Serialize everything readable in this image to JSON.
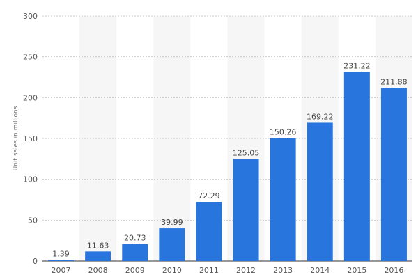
{
  "chart_data": {
    "type": "bar",
    "title": "",
    "xlabel": "",
    "ylabel": "Unit sales in millions",
    "categories": [
      "2007",
      "2008",
      "2009",
      "2010",
      "2011",
      "2012",
      "2013",
      "2014",
      "2015",
      "2016"
    ],
    "values": [
      1.39,
      11.63,
      20.73,
      39.99,
      72.29,
      125.05,
      150.26,
      169.22,
      231.22,
      211.88
    ],
    "value_labels": [
      "1.39",
      "11.63",
      "20.73",
      "39.99",
      "72.29",
      "125.05",
      "150.26",
      "169.22",
      "231.22",
      "211.88"
    ],
    "ylim": [
      0,
      300
    ],
    "yticks": [
      0,
      50,
      100,
      150,
      200,
      250,
      300
    ],
    "grid": true,
    "bar_color": "#2876dd",
    "alternate_band_color": "#f6f6f6",
    "gridline_color": "#cccccc"
  }
}
